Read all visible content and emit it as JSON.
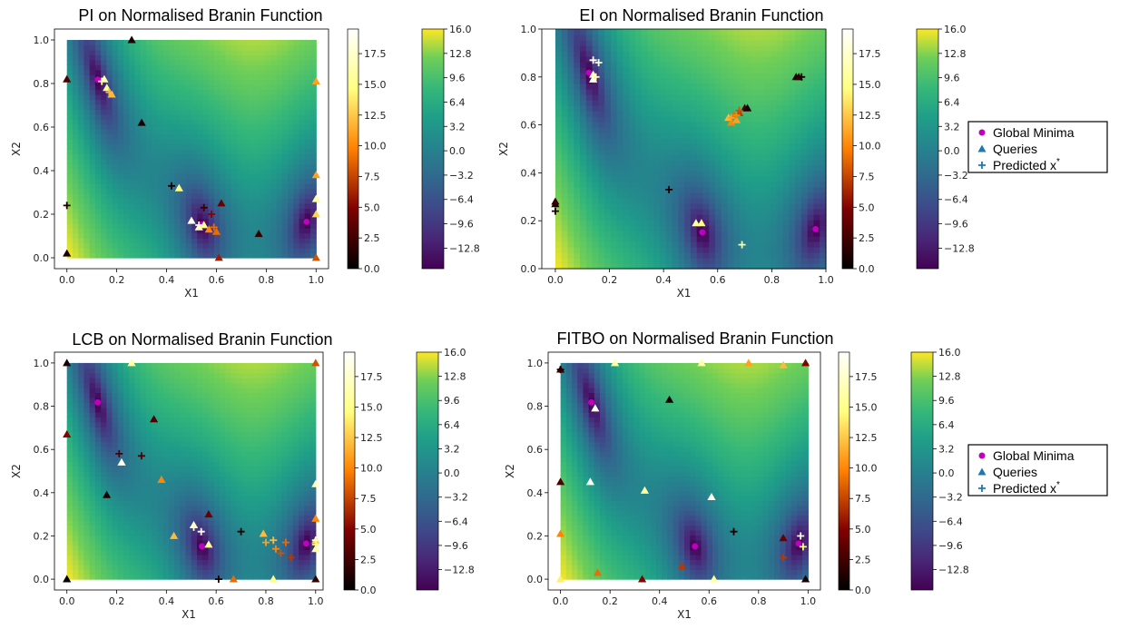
{
  "chart_data": [
    {
      "type": "scatter",
      "title": "PI on Normalised Branin Function",
      "xlabel": "X1",
      "ylabel": "X2",
      "xlim": [
        -0.05,
        1.05
      ],
      "ylim": [
        -0.05,
        1.05
      ],
      "xticks": [
        "0.0",
        "0.2",
        "0.4",
        "0.6",
        "0.8",
        "1.0"
      ],
      "yticks": [
        "0.0",
        "0.2",
        "0.4",
        "0.6",
        "0.8",
        "1.0"
      ],
      "colorbar_iter": {
        "ticks": [
          "0.0",
          "2.5",
          "5.0",
          "7.5",
          "10.0",
          "12.5",
          "15.0",
          "17.5"
        ],
        "range": [
          0,
          19.5
        ],
        "colormap": "afmhot"
      },
      "colorbar_value": {
        "ticks": [
          "16.0",
          "12.8",
          "9.6",
          "6.4",
          "3.2",
          "0.0",
          "−3.2",
          "−6.4",
          "−9.6",
          "−12.8"
        ],
        "range": [
          -15.5,
          16
        ],
        "colormap": "viridis"
      },
      "global_minima": [
        [
          0.124,
          0.818
        ],
        [
          0.543,
          0.152
        ],
        [
          0.962,
          0.165
        ]
      ],
      "queries": [
        [
          0.0,
          0.82,
          3
        ],
        [
          0.26,
          1.0,
          1
        ],
        [
          0.15,
          0.82,
          17
        ],
        [
          0.16,
          0.78,
          15
        ],
        [
          0.18,
          0.75,
          12
        ],
        [
          0.3,
          0.62,
          1
        ],
        [
          0.45,
          0.32,
          15
        ],
        [
          0.5,
          0.17,
          19
        ],
        [
          0.53,
          0.14,
          17
        ],
        [
          0.55,
          0.15,
          15
        ],
        [
          0.57,
          0.13,
          10
        ],
        [
          0.6,
          0.12,
          9
        ],
        [
          0.62,
          0.25,
          4
        ],
        [
          0.61,
          0.0,
          6
        ],
        [
          0.77,
          0.11,
          2
        ],
        [
          1.0,
          0.81,
          11
        ],
        [
          1.0,
          0.38,
          11
        ],
        [
          1.0,
          0.27,
          16
        ],
        [
          1.0,
          0.2,
          13
        ],
        [
          1.0,
          0.0,
          8
        ],
        [
          0.0,
          0.02,
          1
        ]
      ],
      "predicted": [
        [
          0.0,
          0.24,
          1
        ],
        [
          0.14,
          0.81,
          16
        ],
        [
          0.17,
          0.76,
          12
        ],
        [
          0.42,
          0.33,
          1
        ],
        [
          0.53,
          0.15,
          18
        ],
        [
          0.55,
          0.23,
          2
        ],
        [
          0.58,
          0.2,
          5
        ],
        [
          0.59,
          0.14,
          9
        ]
      ]
    },
    {
      "type": "scatter",
      "title": "EI on Normalised Branin Function",
      "xlabel": "X1",
      "ylabel": "X2",
      "xlim": [
        -0.05,
        1.0
      ],
      "ylim": [
        0.0,
        1.0
      ],
      "xticks": [
        "0.0",
        "0.2",
        "0.4",
        "0.6",
        "0.8",
        "1.0"
      ],
      "yticks": [
        "0.0",
        "0.2",
        "0.4",
        "0.6",
        "0.8",
        "1.0"
      ],
      "colorbar_iter": {
        "ticks": [
          "0.0",
          "2.5",
          "5.0",
          "7.5",
          "10.0",
          "12.5",
          "15.0",
          "17.5"
        ],
        "range": [
          0,
          19.5
        ],
        "colormap": "afmhot"
      },
      "colorbar_value": {
        "ticks": [
          "16.0",
          "12.8",
          "9.6",
          "6.4",
          "3.2",
          "0.0",
          "−3.2",
          "−6.4",
          "−9.6",
          "−12.8"
        ],
        "range": [
          -15.5,
          16
        ],
        "colormap": "viridis"
      },
      "global_minima": [
        [
          0.124,
          0.818
        ],
        [
          0.543,
          0.152
        ],
        [
          0.962,
          0.165
        ]
      ],
      "queries": [
        [
          0.0,
          0.27,
          1
        ],
        [
          0.0,
          0.28,
          2
        ],
        [
          0.14,
          0.79,
          19
        ],
        [
          0.14,
          0.81,
          17
        ],
        [
          0.52,
          0.19,
          16
        ],
        [
          0.54,
          0.19,
          15
        ],
        [
          0.64,
          0.63,
          12
        ],
        [
          0.65,
          0.61,
          10
        ],
        [
          0.66,
          0.64,
          9
        ],
        [
          0.67,
          0.62,
          11
        ],
        [
          0.68,
          0.65,
          7
        ],
        [
          0.7,
          0.67,
          3
        ],
        [
          0.71,
          0.67,
          1
        ],
        [
          0.89,
          0.8,
          1
        ],
        [
          0.9,
          0.8,
          2
        ]
      ],
      "predicted": [
        [
          0.0,
          0.24,
          1
        ],
        [
          0.14,
          0.87,
          19
        ],
        [
          0.16,
          0.86,
          18
        ],
        [
          0.15,
          0.8,
          17
        ],
        [
          0.42,
          0.33,
          1
        ],
        [
          0.65,
          0.63,
          11
        ],
        [
          0.67,
          0.64,
          10
        ],
        [
          0.68,
          0.66,
          8
        ],
        [
          0.69,
          0.1,
          16
        ],
        [
          0.91,
          0.8,
          1
        ]
      ]
    },
    {
      "type": "scatter",
      "title": "LCB on Normalised Branin Function",
      "xlabel": "X1",
      "ylabel": "X2",
      "xlim": [
        -0.05,
        1.03
      ],
      "ylim": [
        -0.05,
        1.05
      ],
      "xticks": [
        "0.0",
        "0.2",
        "0.4",
        "0.6",
        "0.8",
        "1.0"
      ],
      "yticks": [
        "0.0",
        "0.2",
        "0.4",
        "0.6",
        "0.8",
        "1.0"
      ],
      "colorbar_iter": {
        "ticks": [
          "0.0",
          "2.5",
          "5.0",
          "7.5",
          "10.0",
          "12.5",
          "15.0",
          "17.5"
        ],
        "range": [
          0,
          19.5
        ],
        "colormap": "afmhot"
      },
      "colorbar_value": {
        "ticks": [
          "16.0",
          "12.8",
          "9.6",
          "6.4",
          "3.2",
          "0.0",
          "−3.2",
          "−6.4",
          "−9.6",
          "−12.8"
        ],
        "range": [
          -15.5,
          16
        ],
        "colormap": "viridis"
      },
      "global_minima": [
        [
          0.124,
          0.818
        ],
        [
          0.543,
          0.152
        ],
        [
          0.962,
          0.165
        ]
      ],
      "queries": [
        [
          0.0,
          1.0,
          1
        ],
        [
          0.0,
          0.67,
          5
        ],
        [
          0.26,
          1.0,
          16
        ],
        [
          0.0,
          0.0,
          0
        ],
        [
          0.16,
          0.39,
          1
        ],
        [
          0.22,
          0.54,
          19
        ],
        [
          0.35,
          0.74,
          3
        ],
        [
          0.38,
          0.46,
          10
        ],
        [
          0.43,
          0.2,
          12
        ],
        [
          0.51,
          0.25,
          18
        ],
        [
          0.57,
          0.16,
          16
        ],
        [
          0.57,
          0.3,
          4
        ],
        [
          0.67,
          0.0,
          9
        ],
        [
          0.79,
          0.21,
          12
        ],
        [
          0.83,
          0.0,
          15
        ],
        [
          1.0,
          1.0,
          8
        ],
        [
          1.0,
          0.44,
          17
        ],
        [
          1.0,
          0.28,
          10
        ],
        [
          1.0,
          0.18,
          13
        ],
        [
          1.0,
          0.14,
          16
        ],
        [
          1.0,
          0.0,
          2
        ]
      ],
      "predicted": [
        [
          0.21,
          0.58,
          3
        ],
        [
          0.3,
          0.57,
          3
        ],
        [
          0.51,
          0.24,
          17
        ],
        [
          0.54,
          0.22,
          19
        ],
        [
          0.61,
          0.0,
          1
        ],
        [
          0.7,
          0.22,
          1
        ],
        [
          0.8,
          0.17,
          11
        ],
        [
          0.83,
          0.18,
          12
        ],
        [
          0.84,
          0.14,
          10
        ],
        [
          0.86,
          0.12,
          8
        ],
        [
          0.88,
          0.17,
          9
        ],
        [
          0.9,
          0.1,
          7
        ],
        [
          1.0,
          0.18,
          18
        ],
        [
          1.0,
          0.16,
          15
        ]
      ]
    },
    {
      "type": "scatter",
      "title": "FITBO on Normalised Branin Function",
      "xlabel": "X1",
      "ylabel": "X2",
      "xlim": [
        -0.05,
        1.05
      ],
      "ylim": [
        -0.05,
        1.05
      ],
      "xticks": [
        "0.0",
        "0.2",
        "0.4",
        "0.6",
        "0.8",
        "1.0"
      ],
      "yticks": [
        "0.0",
        "0.2",
        "0.4",
        "0.6",
        "0.8",
        "1.0"
      ],
      "colorbar_iter": {
        "ticks": [
          "0.0",
          "2.5",
          "5.0",
          "7.5",
          "10.0",
          "12.5",
          "15.0",
          "17.5"
        ],
        "range": [
          0,
          19.5
        ],
        "colormap": "afmhot"
      },
      "colorbar_value": {
        "ticks": [
          "16.0",
          "12.8",
          "9.6",
          "6.4",
          "3.2",
          "0.0",
          "−3.2",
          "−6.4",
          "−9.6",
          "−12.8"
        ],
        "range": [
          -15.5,
          16
        ],
        "colormap": "viridis"
      },
      "global_minima": [
        [
          0.124,
          0.818
        ],
        [
          0.543,
          0.152
        ],
        [
          0.962,
          0.165
        ]
      ],
      "queries": [
        [
          0.0,
          0.97,
          2
        ],
        [
          0.0,
          0.45,
          3
        ],
        [
          0.0,
          0.21,
          10
        ],
        [
          0.0,
          0.0,
          14
        ],
        [
          0.12,
          0.45,
          19
        ],
        [
          0.14,
          0.79,
          19
        ],
        [
          0.15,
          0.03,
          9
        ],
        [
          0.22,
          1.0,
          16
        ],
        [
          0.33,
          0.0,
          5
        ],
        [
          0.34,
          0.41,
          16
        ],
        [
          0.44,
          0.83,
          1
        ],
        [
          0.49,
          0.06,
          7
        ],
        [
          0.57,
          1.0,
          16
        ],
        [
          0.61,
          0.38,
          19
        ],
        [
          0.62,
          0.0,
          16
        ],
        [
          0.76,
          1.0,
          11
        ],
        [
          0.9,
          0.99,
          12
        ],
        [
          0.9,
          0.19,
          4
        ],
        [
          0.99,
          1.0,
          5
        ],
        [
          0.99,
          0.0,
          1
        ]
      ],
      "predicted": [
        [
          0.0,
          0.97,
          1
        ],
        [
          0.7,
          0.22,
          1
        ],
        [
          0.9,
          0.1,
          7
        ],
        [
          0.97,
          0.2,
          19
        ],
        [
          0.98,
          0.15,
          15
        ]
      ]
    }
  ],
  "legend": {
    "items": [
      {
        "label": "Global Minima",
        "color": "#bf00bf",
        "marker": "circle"
      },
      {
        "label": "Queries",
        "color": "#1f77b4",
        "marker": "triangle"
      },
      {
        "label": "Predicted x",
        "sup": "*",
        "color": "#1f77b4",
        "marker": "plus"
      }
    ]
  }
}
